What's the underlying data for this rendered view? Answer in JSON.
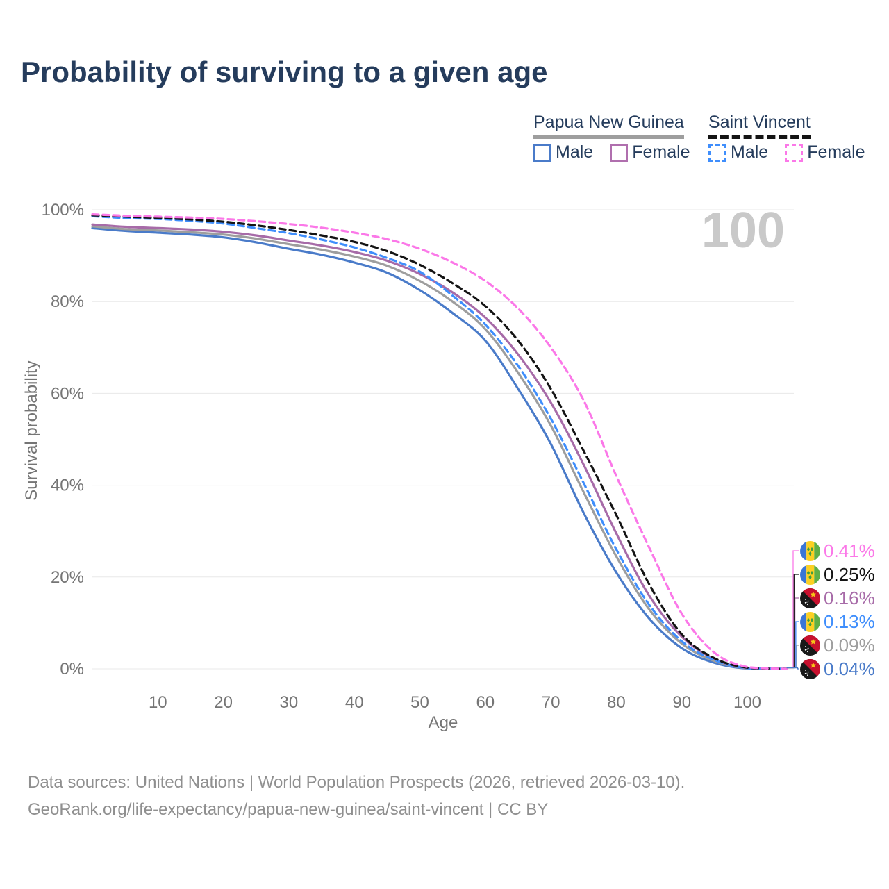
{
  "title": "Probability of surviving to a given age",
  "watermark": "100",
  "legend": {
    "groups": [
      {
        "name": "Papua New Guinea",
        "line_style": "solid",
        "line_color": "#9e9e9e",
        "items": [
          {
            "label": "Male",
            "series": "png_male",
            "color": "#4a7bc9",
            "dashed": false
          },
          {
            "label": "Female",
            "series": "png_female",
            "color": "#b06fae",
            "dashed": false
          }
        ]
      },
      {
        "name": "Saint Vincent",
        "line_style": "dashed",
        "line_color": "#141414",
        "items": [
          {
            "label": "Male",
            "series": "sv_male",
            "color": "#3f8efc",
            "dashed": true
          },
          {
            "label": "Female",
            "series": "sv_female",
            "color": "#fb78e8",
            "dashed": true
          }
        ]
      }
    ]
  },
  "chart_data": {
    "type": "line",
    "title": "Probability of surviving to a given age",
    "xlabel": "Age",
    "ylabel": "Survival probability",
    "xlim": [
      0,
      106
    ],
    "ylim": [
      0,
      100
    ],
    "xticks": [
      10,
      20,
      30,
      40,
      50,
      60,
      70,
      80,
      90,
      100
    ],
    "yticks": [
      0,
      20,
      40,
      60,
      80,
      100
    ],
    "grid": "horizontal-only",
    "legend_position": "top-right",
    "hover_age": "100",
    "x": [
      0,
      5,
      10,
      15,
      20,
      25,
      30,
      35,
      40,
      45,
      50,
      55,
      60,
      65,
      70,
      75,
      80,
      85,
      90,
      95,
      100,
      106
    ],
    "series": [
      {
        "key": "png_male",
        "country": "Papua New Guinea",
        "label": "Male",
        "color": "#4a7bc9",
        "dashed": false,
        "values": [
          96,
          95.4,
          95,
          94.6,
          94,
          92.9,
          91.5,
          90.2,
          88.5,
          86.3,
          82.5,
          77.5,
          71.5,
          61,
          49,
          34,
          21,
          11,
          4.5,
          1.3,
          0.04,
          0
        ],
        "value_at_100": "0.04%"
      },
      {
        "key": "png_both",
        "country": "Papua New Guinea",
        "label": "",
        "color": "#9e9e9e",
        "dashed": false,
        "values": [
          96.4,
          95.8,
          95.5,
          95.1,
          94.6,
          93.7,
          92.5,
          91.3,
          89.8,
          87.8,
          84.5,
          80,
          74,
          64.5,
          53,
          38.5,
          24.5,
          13,
          5.5,
          1.7,
          0.09,
          0
        ],
        "value_at_100": "0.09%"
      },
      {
        "key": "png_female",
        "country": "Papua New Guinea",
        "label": "Female",
        "color": "#a76ba8",
        "dashed": false,
        "values": [
          96.8,
          96.3,
          96,
          95.7,
          95.2,
          94.4,
          93.3,
          92.2,
          90.8,
          88.9,
          86,
          82,
          76.5,
          68.5,
          58,
          44.5,
          29.5,
          16,
          7,
          2.1,
          0.16,
          0
        ],
        "value_at_100": "0.16%"
      },
      {
        "key": "sv_male",
        "country": "Saint Vincent",
        "label": "Male",
        "color": "#3f8efc",
        "dashed": true,
        "values": [
          98.6,
          98.2,
          98,
          97.6,
          97,
          96,
          94.9,
          93.5,
          91.8,
          89.5,
          86.5,
          81.3,
          75,
          66,
          54.5,
          40.5,
          26,
          14,
          6,
          1.9,
          0.13,
          0
        ],
        "value_at_100": "0.13%"
      },
      {
        "key": "sv_both",
        "country": "Saint Vincent",
        "label": "",
        "color": "#141414",
        "dashed": true,
        "values": [
          98.8,
          98.5,
          98.2,
          97.9,
          97.4,
          96.6,
          95.6,
          94.4,
          93,
          91,
          88,
          84,
          79,
          71.5,
          61,
          47.5,
          33.5,
          18.5,
          7.5,
          2.3,
          0.25,
          0
        ],
        "value_at_100": "0.25%"
      },
      {
        "key": "sv_female",
        "country": "Saint Vincent",
        "label": "Female",
        "color": "#fb78e8",
        "dashed": true,
        "values": [
          99,
          98.7,
          98.5,
          98.3,
          98,
          97.5,
          96.9,
          96.1,
          95,
          93.6,
          91.5,
          88.5,
          84.5,
          78.5,
          70,
          58.5,
          42,
          26.5,
          12,
          3.5,
          0.41,
          0
        ],
        "value_at_100": "0.41%"
      }
    ]
  },
  "end_labels": [
    {
      "series": "sv_female",
      "flag": "sv",
      "value": "0.41%"
    },
    {
      "series": "sv_both",
      "flag": "sv",
      "value": "0.25%"
    },
    {
      "series": "png_female",
      "flag": "png",
      "value": "0.16%"
    },
    {
      "series": "sv_male",
      "flag": "sv",
      "value": "0.13%"
    },
    {
      "series": "png_both",
      "flag": "png",
      "value": "0.09%"
    },
    {
      "series": "png_male",
      "flag": "png",
      "value": "0.04%"
    }
  ],
  "source": {
    "line1": "Data sources: United Nations | World Population Prospects (2026, retrieved 2026-03-10).",
    "line2": "GeoRank.org/life-expectancy/papua-new-guinea/saint-vincent | CC BY"
  }
}
